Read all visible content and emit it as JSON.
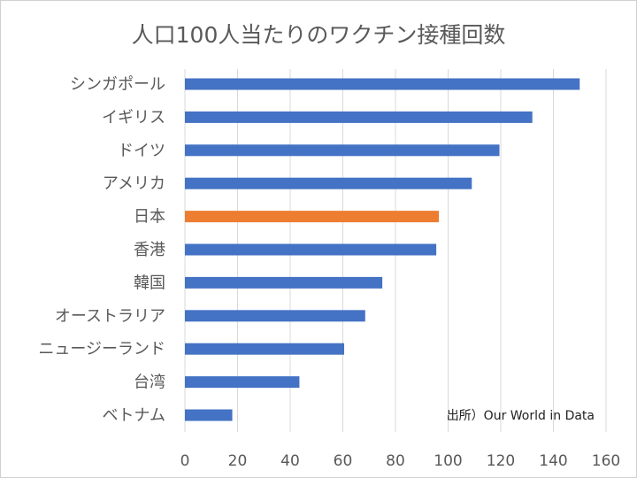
{
  "chart_data": {
    "type": "bar",
    "orientation": "horizontal",
    "title": "人口100人当たりのワクチン接種回数",
    "categories": [
      "シンガポール",
      "イギリス",
      "ドイツ",
      "アメリカ",
      "日本",
      "香港",
      "韓国",
      "オーストラリア",
      "ニュージーランド",
      "台湾",
      "ベトナム"
    ],
    "values": [
      150,
      132,
      119.5,
      109,
      96.5,
      95.5,
      75,
      68.5,
      60.5,
      43.5,
      18
    ],
    "colors": [
      "#4472C4",
      "#4472C4",
      "#4472C4",
      "#4472C4",
      "#ED7D31",
      "#4472C4",
      "#4472C4",
      "#4472C4",
      "#4472C4",
      "#4472C4",
      "#4472C4"
    ],
    "xlim": [
      0,
      160
    ],
    "xticks": [
      "0",
      "20",
      "40",
      "60",
      "80",
      "100",
      "120",
      "140",
      "160"
    ],
    "grid": true,
    "annotation": "出所）Our World in Data"
  }
}
